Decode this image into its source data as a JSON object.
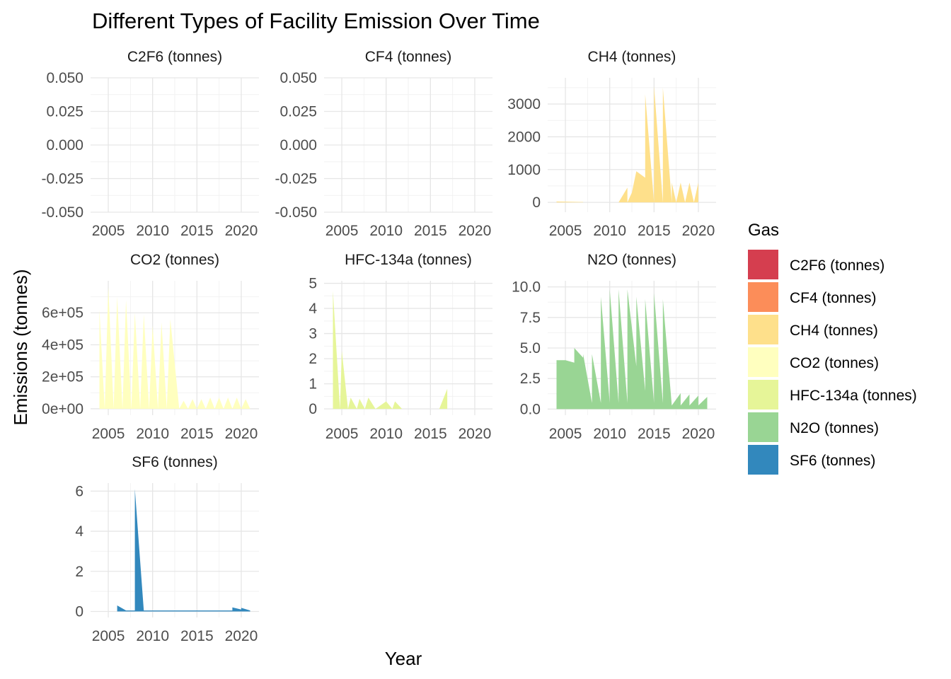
{
  "chart_data": {
    "type": "area",
    "title": "Different Types of Facility Emission Over Time",
    "xlabel": "Year",
    "ylabel": "Emissions (tonnes)",
    "legend": {
      "title": "Gas",
      "position": "right"
    },
    "grid": true,
    "xlim": [
      2003,
      2022
    ],
    "x_ticks": [
      2005,
      2010,
      2015,
      2020
    ],
    "facets": [
      {
        "name": "C2F6 (tonnes)",
        "color": "#d53e4f",
        "ylim": [
          -0.05,
          0.05
        ],
        "y_ticks": [
          -0.05,
          -0.025,
          0,
          0.025,
          0.05
        ],
        "y_tick_labels": [
          "-0.050",
          "-0.025",
          "0.000",
          "0.025",
          "0.050"
        ],
        "points": []
      },
      {
        "name": "CF4 (tonnes)",
        "color": "#fc8d59",
        "ylim": [
          -0.05,
          0.05
        ],
        "y_ticks": [
          -0.05,
          -0.025,
          0,
          0.025,
          0.05
        ],
        "y_tick_labels": [
          "-0.050",
          "-0.025",
          "0.000",
          "0.025",
          "0.050"
        ],
        "points": []
      },
      {
        "name": "CH4 (tonnes)",
        "color": "#fee08b",
        "ylim": [
          -300,
          3800
        ],
        "y_ticks": [
          0,
          1000,
          2000,
          3000
        ],
        "y_tick_labels": [
          "0",
          "1000",
          "2000",
          "3000"
        ],
        "points": [
          [
            2004,
            0
          ],
          [
            2004,
            25
          ],
          [
            2007,
            10
          ],
          [
            2007,
            0
          ],
          [
            2011,
            0
          ],
          [
            2012,
            450
          ],
          [
            2012,
            0
          ],
          [
            2012.5,
            300
          ],
          [
            2013,
            950
          ],
          [
            2014,
            750
          ],
          [
            2014,
            3300
          ],
          [
            2015,
            0
          ],
          [
            2015,
            3550
          ],
          [
            2016,
            0
          ],
          [
            2016,
            3500
          ],
          [
            2017,
            0
          ],
          [
            2017,
            600
          ],
          [
            2017.5,
            0
          ],
          [
            2018,
            600
          ],
          [
            2018.5,
            0
          ],
          [
            2019,
            600
          ],
          [
            2019.5,
            0
          ],
          [
            2020,
            600
          ],
          [
            2020,
            0
          ]
        ]
      },
      {
        "name": "CO2 (tonnes)",
        "color": "#ffffbf",
        "ylim": [
          -40000,
          800000
        ],
        "y_ticks": [
          0,
          200000,
          400000,
          600000
        ],
        "y_tick_labels": [
          "0e+00",
          "2e+05",
          "4e+05",
          "6e+05"
        ],
        "points": [
          [
            2004,
            0
          ],
          [
            2004,
            620000
          ],
          [
            2004.6,
            0
          ],
          [
            2005,
            760000
          ],
          [
            2005.6,
            0
          ],
          [
            2006,
            700000
          ],
          [
            2006.6,
            0
          ],
          [
            2007,
            680000
          ],
          [
            2007.6,
            0
          ],
          [
            2008,
            600000
          ],
          [
            2008.6,
            0
          ],
          [
            2009,
            590000
          ],
          [
            2009.6,
            0
          ],
          [
            2010,
            520000
          ],
          [
            2010.6,
            0
          ],
          [
            2011,
            540000
          ],
          [
            2011.6,
            0
          ],
          [
            2012,
            560000
          ],
          [
            2013,
            0
          ],
          [
            2013.5,
            50000
          ],
          [
            2014,
            0
          ],
          [
            2014.5,
            60000
          ],
          [
            2015,
            0
          ],
          [
            2015.5,
            60000
          ],
          [
            2016,
            0
          ],
          [
            2016.5,
            70000
          ],
          [
            2017,
            0
          ],
          [
            2017.5,
            70000
          ],
          [
            2018,
            0
          ],
          [
            2018.5,
            70000
          ],
          [
            2019,
            0
          ],
          [
            2019.5,
            70000
          ],
          [
            2020,
            0
          ],
          [
            2020.5,
            60000
          ],
          [
            2021,
            0
          ]
        ]
      },
      {
        "name": "HFC-134a (tonnes)",
        "color": "#e6f598",
        "ylim": [
          -0.25,
          5.1
        ],
        "y_ticks": [
          0,
          1,
          2,
          3,
          4,
          5
        ],
        "y_tick_labels": [
          "0",
          "1",
          "2",
          "3",
          "4",
          "5"
        ],
        "points": [
          [
            2004,
            0
          ],
          [
            2004,
            4.7
          ],
          [
            2004.8,
            0
          ],
          [
            2005,
            2.3
          ],
          [
            2005.7,
            0
          ],
          [
            2006,
            0.45
          ],
          [
            2006.7,
            0
          ],
          [
            2007,
            0.4
          ],
          [
            2007.6,
            0
          ],
          [
            2008,
            0.45
          ],
          [
            2008.8,
            0
          ],
          [
            2010,
            0.3
          ],
          [
            2010.7,
            0
          ],
          [
            2011,
            0.3
          ],
          [
            2011.8,
            0
          ],
          [
            2016,
            0
          ],
          [
            2016.9,
            0.8
          ],
          [
            2016.9,
            0
          ]
        ]
      },
      {
        "name": "N2O (tonnes)",
        "color": "#99d594",
        "ylim": [
          -0.5,
          10.5
        ],
        "y_ticks": [
          0,
          2.5,
          5,
          7.5,
          10
        ],
        "y_tick_labels": [
          "0.0",
          "2.5",
          "5.0",
          "7.5",
          "10.0"
        ],
        "points": [
          [
            2004,
            0
          ],
          [
            2004,
            4.0
          ],
          [
            2005,
            4.0
          ],
          [
            2006,
            3.8
          ],
          [
            2006,
            5.0
          ],
          [
            2007,
            4.2
          ],
          [
            2007,
            4.5
          ],
          [
            2008,
            0.5
          ],
          [
            2008,
            4.5
          ],
          [
            2009,
            0.5
          ],
          [
            2009,
            9.2
          ],
          [
            2010,
            0.5
          ],
          [
            2010,
            9.8
          ],
          [
            2011,
            0.5
          ],
          [
            2011,
            9.8
          ],
          [
            2012,
            0.5
          ],
          [
            2012,
            9.8
          ],
          [
            2013,
            3.5
          ],
          [
            2013,
            9.2
          ],
          [
            2014,
            1.5
          ],
          [
            2014,
            9.0
          ],
          [
            2015,
            0.5
          ],
          [
            2015,
            9.5
          ],
          [
            2016,
            0.5
          ],
          [
            2016,
            9.0
          ],
          [
            2017,
            0.3
          ],
          [
            2017,
            0.3
          ],
          [
            2018,
            1.3
          ],
          [
            2018,
            0.3
          ],
          [
            2019,
            1.2
          ],
          [
            2019,
            0.3
          ],
          [
            2020,
            1.1
          ],
          [
            2020,
            0.3
          ],
          [
            2021,
            1.0
          ],
          [
            2021,
            0
          ]
        ]
      },
      {
        "name": "SF6 (tonnes)",
        "color": "#3288bd",
        "ylim": [
          -0.3,
          6.4
        ],
        "y_ticks": [
          0,
          2,
          4,
          6
        ],
        "y_tick_labels": [
          "0",
          "2",
          "4",
          "6"
        ],
        "points": [
          [
            2006,
            0
          ],
          [
            2006,
            0.3
          ],
          [
            2007,
            0.05
          ],
          [
            2008,
            0.05
          ],
          [
            2008,
            6.1
          ],
          [
            2009,
            0.05
          ],
          [
            2019,
            0.05
          ],
          [
            2019,
            0.2
          ],
          [
            2020,
            0.1
          ],
          [
            2020,
            0.18
          ],
          [
            2021,
            0.05
          ],
          [
            2021,
            0
          ]
        ]
      }
    ]
  }
}
